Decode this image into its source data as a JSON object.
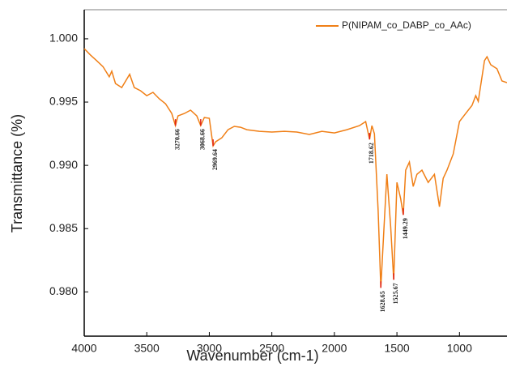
{
  "chart_data": {
    "type": "line",
    "x_label": "Wavenumber (cm-1)",
    "y_label": "Transmittance (%)",
    "xlim": [
      4000,
      620
    ],
    "ylim": [
      0.9765,
      1.0023
    ],
    "xticks": [
      4000,
      3500,
      3000,
      2500,
      2000,
      1500,
      1000
    ],
    "yticks": [
      {
        "value": 0.98,
        "label": "0.980"
      },
      {
        "value": 0.985,
        "label": "0.985"
      },
      {
        "value": 0.99,
        "label": "0.990"
      },
      {
        "value": 0.995,
        "label": "0.995"
      },
      {
        "value": 1.0,
        "label": "1.000"
      }
    ],
    "x_reversed": true,
    "legend": "top-right",
    "x": [
      4000,
      3950,
      3900,
      3850,
      3800,
      3780,
      3750,
      3700,
      3637,
      3600,
      3550,
      3500,
      3450,
      3400,
      3350,
      3300,
      3270.66,
      3250,
      3200,
      3150,
      3100,
      3068.66,
      3040,
      3000,
      2969.64,
      2950,
      2900,
      2850,
      2800,
      2750,
      2700,
      2600,
      2500,
      2400,
      2300,
      2200,
      2100,
      2000,
      1900,
      1800,
      1750,
      1718.62,
      1700,
      1680,
      1650,
      1628.65,
      1600,
      1580,
      1550,
      1525.67,
      1500,
      1470,
      1449.29,
      1430,
      1400,
      1370,
      1340,
      1300,
      1250,
      1200,
      1160,
      1130,
      1100,
      1050,
      1000,
      950,
      900,
      870,
      850,
      800,
      780,
      750,
      700,
      660,
      620
    ],
    "series": [
      {
        "name": "P(NIPAM_co_DABP_co_AAc)",
        "color": "#f07f16",
        "values": [
          0.99923,
          0.99872,
          0.99827,
          0.9978,
          0.997,
          0.99744,
          0.99647,
          0.99615,
          0.9972,
          0.99615,
          0.9959,
          0.99551,
          0.99577,
          0.99526,
          0.99487,
          0.9941,
          0.99314,
          0.99391,
          0.9941,
          0.99436,
          0.99391,
          0.99314,
          0.99378,
          0.99372,
          0.99154,
          0.99186,
          0.99218,
          0.99282,
          0.99308,
          0.99301,
          0.99282,
          0.99269,
          0.99263,
          0.99269,
          0.99263,
          0.99244,
          0.99269,
          0.99256,
          0.99282,
          0.99314,
          0.99346,
          0.99205,
          0.99314,
          0.9925,
          0.98641,
          0.98032,
          0.98577,
          0.9893,
          0.98513,
          0.98096,
          0.98865,
          0.98737,
          0.98609,
          0.98962,
          0.99026,
          0.98833,
          0.98929,
          0.98962,
          0.98865,
          0.98929,
          0.98673,
          0.98897,
          0.98962,
          0.9909,
          0.99346,
          0.9941,
          0.99474,
          0.99551,
          0.99506,
          0.99827,
          0.99859,
          0.99795,
          0.99763,
          0.99667,
          0.99654
        ]
      }
    ],
    "peaks": [
      3270.66,
      3068.66,
      2969.64,
      1718.62,
      1628.65,
      1525.67,
      1449.29
    ],
    "peak_color": "#e0201a"
  }
}
